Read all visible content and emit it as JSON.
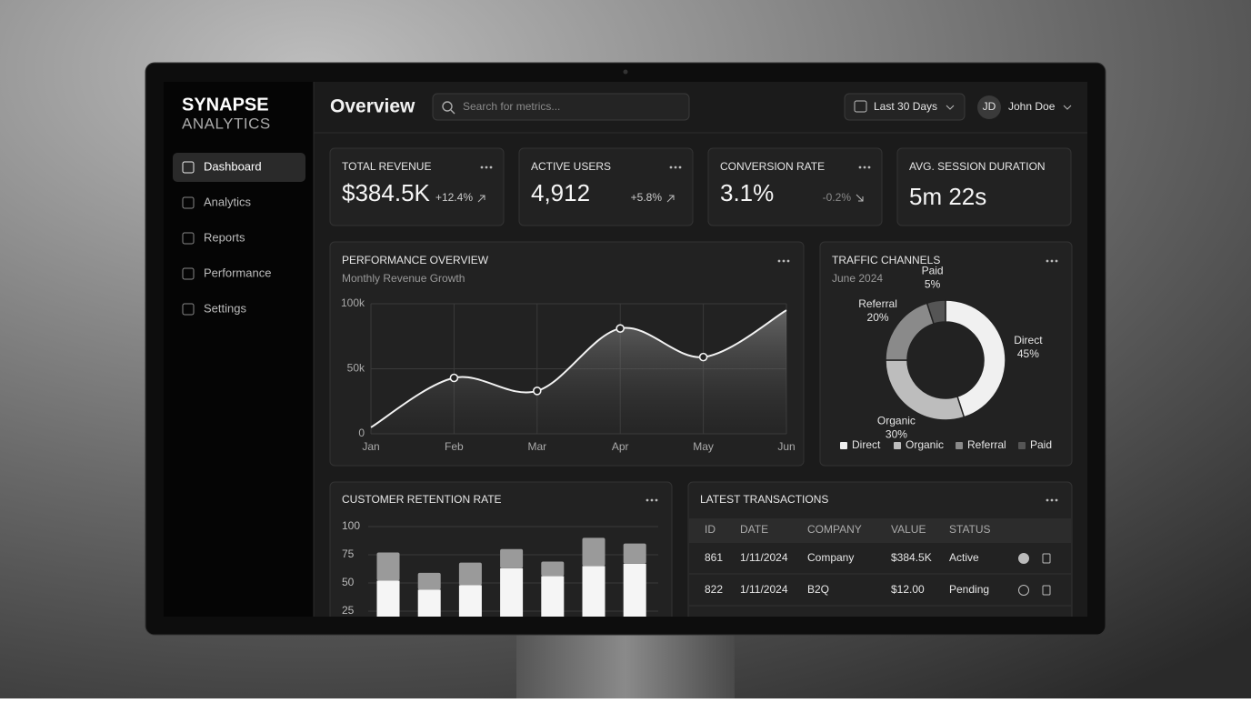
{
  "sidebar": {
    "brand": "SYNAPSE",
    "brand_sub": "ANALYTICS",
    "nav": [
      "Dashboard",
      "Analytics",
      "Reports",
      "Performance",
      "Settings"
    ]
  },
  "header": {
    "title": "Overview",
    "search_placeholder": "Search for metrics...",
    "date_range": "Last 30 Days",
    "user_initials": "JD",
    "user_name": "John Doe"
  },
  "kpis": [
    {
      "label": "TOTAL REVENUE",
      "value": "$384.5K",
      "change": "+12.4%"
    },
    {
      "label": "ACTIVE USERS",
      "value": "4,912",
      "change": "+5.8%"
    },
    {
      "label": "CONVERSION RATE",
      "value": "3.1%",
      "change": "-0.2%"
    },
    {
      "label": "AVG. SESSION DURATION",
      "value": "5m 22s"
    }
  ],
  "performance": {
    "type": "line",
    "title": "PERFORMANCE OVERVIEW",
    "subtitle": "Monthly Revenue Growth",
    "categories": [
      "Jan",
      "Feb",
      "Mar",
      "Apr",
      "May",
      "Jun"
    ],
    "values": [
      5000,
      43000,
      33000,
      81000,
      59000,
      95000
    ],
    "color": "#f2f2f2",
    "ylim": [
      0,
      100000
    ],
    "yticks": [
      0,
      {
        "value": 50000,
        "label": "50k"
      },
      {
        "value": 100000,
        "label": "100k"
      }
    ],
    "grid": true
  },
  "traffic": {
    "type": "pie",
    "title": "TRAFFIC CHANNELS",
    "subtitle": "June 2024",
    "categories": [
      "Direct",
      "Organic",
      "Referral",
      "Paid"
    ],
    "values": [
      45,
      30,
      20,
      5
    ],
    "value_labels": [
      "45%",
      "30%",
      "20%",
      "5%"
    ],
    "colors": [
      "#f0f0f0",
      "#bdbdbd",
      "#8a8a8a",
      "#555555"
    ]
  },
  "retention": {
    "type": "bar",
    "title": "CUSTOMER RETENTION RATE",
    "stacked": true,
    "categories": [
      null,
      null,
      null,
      null,
      null,
      null,
      null
    ],
    "series": [
      {
        "color": "#f5f5f5",
        "values": [
          52,
          44,
          48,
          63,
          56,
          65,
          67
        ]
      },
      {
        "color": "#9a9a9a",
        "values": [
          25,
          15,
          20,
          17,
          13,
          25,
          18
        ]
      }
    ],
    "ylim": [
      0,
      100
    ],
    "yticks": [
      25,
      50,
      75,
      100
    ],
    "grid": true
  },
  "transactions": {
    "title": "LATEST TRANSACTIONS",
    "columns": [
      "ID",
      "DATE",
      "COMPANY",
      "VALUE",
      "STATUS"
    ],
    "rows": [
      [
        "861",
        "1/11/2024",
        "Company",
        "$384.5K",
        "Active"
      ],
      [
        "822",
        "1/11/2024",
        "B2Q",
        "$12.00",
        "Pending"
      ]
    ]
  }
}
